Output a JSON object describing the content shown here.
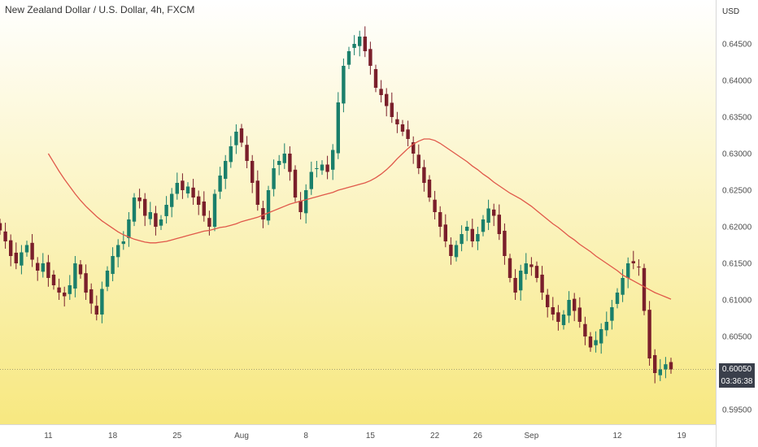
{
  "chart_data": {
    "type": "candlestick",
    "title": "New Zealand Dollar / U.S. Dollar, 4h, FXCM",
    "currency": "USD",
    "current_price": "0.60050",
    "countdown": "03:36:38",
    "ylim": [
      0.593,
      0.651
    ],
    "y_ticks": [
      "0.64500",
      "0.64000",
      "0.63500",
      "0.63000",
      "0.62500",
      "0.62000",
      "0.61500",
      "0.61000",
      "0.60500",
      "0.59500"
    ],
    "x_ticks": [
      {
        "label": "11",
        "idx": 9
      },
      {
        "label": "18",
        "idx": 21
      },
      {
        "label": "25",
        "idx": 33
      },
      {
        "label": "Aug",
        "idx": 45
      },
      {
        "label": "8",
        "idx": 57
      },
      {
        "label": "15",
        "idx": 69
      },
      {
        "label": "22",
        "idx": 81
      },
      {
        "label": "26",
        "idx": 89
      },
      {
        "label": "Sep",
        "idx": 99
      },
      {
        "label": "12",
        "idx": 115
      },
      {
        "label": "19",
        "idx": 127
      }
    ],
    "colors": {
      "bg_top": "#ffffff",
      "bg_bottom": "#f7e880",
      "up": "#1a7f6b",
      "down": "#7a1f2b",
      "ma": "#e0584a",
      "axis_text": "#4d4d4d",
      "price_tag": "#3a3f4b",
      "grid": "#f0f0f0"
    },
    "closes": [
      0.6195,
      0.618,
      0.616,
      0.615,
      0.6165,
      0.6175,
      0.6155,
      0.614,
      0.615,
      0.613,
      0.612,
      0.611,
      0.6105,
      0.612,
      0.615,
      0.6135,
      0.611,
      0.6095,
      0.608,
      0.6115,
      0.614,
      0.616,
      0.6175,
      0.618,
      0.621,
      0.624,
      0.6235,
      0.6215,
      0.622,
      0.62,
      0.621,
      0.623,
      0.6245,
      0.626,
      0.625,
      0.6255,
      0.624,
      0.623,
      0.6215,
      0.62,
      0.6245,
      0.627,
      0.629,
      0.631,
      0.633,
      0.6315,
      0.629,
      0.626,
      0.623,
      0.621,
      0.625,
      0.628,
      0.629,
      0.63,
      0.6275,
      0.624,
      0.622,
      0.625,
      0.6275,
      0.628,
      0.6285,
      0.6275,
      0.6305,
      0.637,
      0.642,
      0.644,
      0.645,
      0.646,
      0.644,
      0.642,
      0.639,
      0.638,
      0.6365,
      0.635,
      0.634,
      0.633,
      0.632,
      0.63,
      0.628,
      0.626,
      0.624,
      0.622,
      0.62,
      0.618,
      0.616,
      0.6175,
      0.619,
      0.62,
      0.618,
      0.619,
      0.621,
      0.6225,
      0.6215,
      0.619,
      0.616,
      0.613,
      0.611,
      0.614,
      0.615,
      0.6145,
      0.613,
      0.611,
      0.609,
      0.608,
      0.607,
      0.608,
      0.61,
      0.6085,
      0.607,
      0.605,
      0.6035,
      0.6045,
      0.606,
      0.607,
      0.609,
      0.611,
      0.613,
      0.615,
      0.615,
      0.6145,
      0.6085,
      0.602,
      0.6,
      0.6005,
      0.6012,
      0.6005
    ],
    "ma": [
      0.63,
      0.6288,
      0.6276,
      0.6265,
      0.6255,
      0.6245,
      0.6236,
      0.6228,
      0.6221,
      0.6214,
      0.6208,
      0.6203,
      0.6198,
      0.6193,
      0.6189,
      0.6186,
      0.6183,
      0.6181,
      0.6179,
      0.6178,
      0.6178,
      0.6179,
      0.618,
      0.6182,
      0.6184,
      0.6186,
      0.6188,
      0.619,
      0.6192,
      0.6194,
      0.6195,
      0.6197,
      0.6199,
      0.62,
      0.6202,
      0.6204,
      0.6207,
      0.6209,
      0.6211,
      0.6213,
      0.6216,
      0.6219,
      0.6222,
      0.6225,
      0.6228,
      0.6231,
      0.6233,
      0.6235,
      0.6237,
      0.6239,
      0.6241,
      0.6243,
      0.6245,
      0.6247,
      0.625,
      0.6252,
      0.6254,
      0.6256,
      0.6258,
      0.626,
      0.6263,
      0.6267,
      0.6272,
      0.6278,
      0.6285,
      0.6293,
      0.63,
      0.6307,
      0.6313,
      0.6317,
      0.632,
      0.632,
      0.6318,
      0.6314,
      0.6309,
      0.6304,
      0.6299,
      0.6294,
      0.6289,
      0.6283,
      0.6278,
      0.6272,
      0.6267,
      0.6261,
      0.6256,
      0.6251,
      0.6246,
      0.6242,
      0.6238,
      0.6233,
      0.6228,
      0.6222,
      0.6216,
      0.621,
      0.6204,
      0.6199,
      0.6193,
      0.6187,
      0.6182,
      0.6176,
      0.6171,
      0.6166,
      0.616,
      0.6155,
      0.615,
      0.6145,
      0.614,
      0.6134,
      0.613,
      0.6126,
      0.6122,
      0.6118,
      0.6114,
      0.611,
      0.6107,
      0.6104,
      0.6101
    ]
  }
}
